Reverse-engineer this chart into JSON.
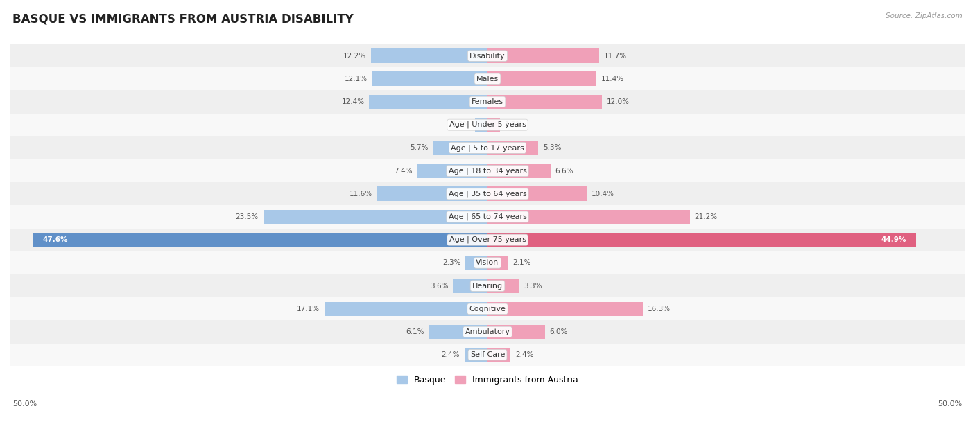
{
  "title": "BASQUE VS IMMIGRANTS FROM AUSTRIA DISABILITY",
  "source": "Source: ZipAtlas.com",
  "categories": [
    "Disability",
    "Males",
    "Females",
    "Age | Under 5 years",
    "Age | 5 to 17 years",
    "Age | 18 to 34 years",
    "Age | 35 to 64 years",
    "Age | 65 to 74 years",
    "Age | Over 75 years",
    "Vision",
    "Hearing",
    "Cognitive",
    "Ambulatory",
    "Self-Care"
  ],
  "basque_values": [
    12.2,
    12.1,
    12.4,
    1.3,
    5.7,
    7.4,
    11.6,
    23.5,
    47.6,
    2.3,
    3.6,
    17.1,
    6.1,
    2.4
  ],
  "austria_values": [
    11.7,
    11.4,
    12.0,
    1.3,
    5.3,
    6.6,
    10.4,
    21.2,
    44.9,
    2.1,
    3.3,
    16.3,
    6.0,
    2.4
  ],
  "basque_color": "#a8c8e8",
  "austria_color": "#f0a0b8",
  "basque_label": "Basque",
  "austria_label": "Immigrants from Austria",
  "axis_max": 50.0,
  "fig_bg": "#ffffff",
  "row_bg_light": "#f0f0f0",
  "row_bg_dark": "#e0e0e8",
  "title_fontsize": 12,
  "label_fontsize": 8,
  "value_fontsize": 7.5,
  "legend_fontsize": 9,
  "over75_basque_color": "#6090c8",
  "over75_austria_color": "#e06080"
}
